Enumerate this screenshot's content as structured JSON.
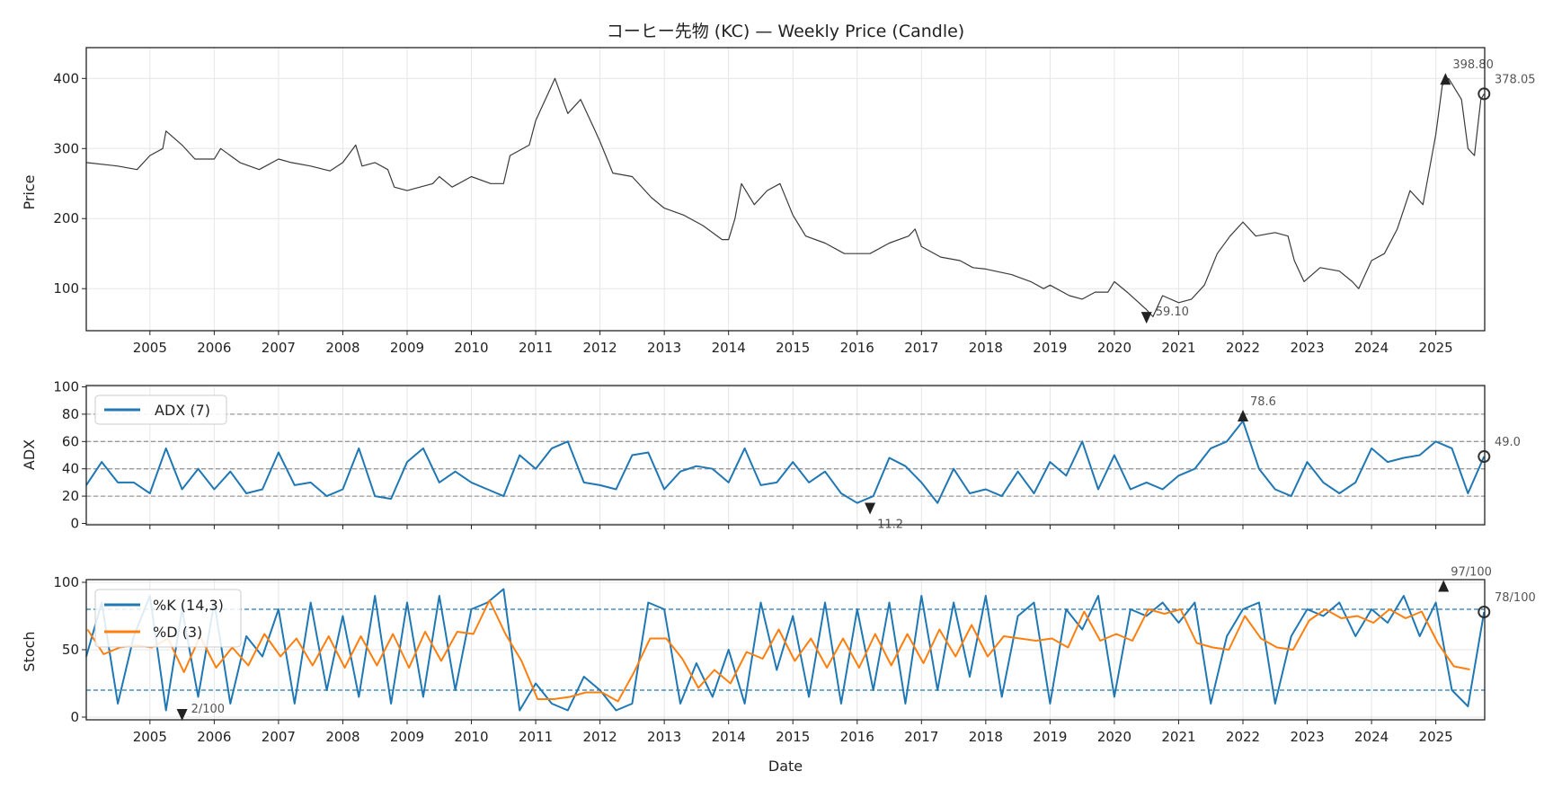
{
  "chart_data": [
    {
      "type": "line",
      "title": "コーヒー先物 (KC) — Weekly Price (Candle)",
      "ylabel": "Price",
      "xlim": [
        2004.01,
        2025.76
      ],
      "ylim": [
        40,
        444
      ],
      "yticks": [
        100,
        200,
        300,
        400
      ],
      "xticks": [
        2005,
        2006,
        2007,
        2008,
        2009,
        2010,
        2011,
        2012,
        2013,
        2014,
        2015,
        2016,
        2017,
        2018,
        2019,
        2020,
        2021,
        2022,
        2023,
        2024,
        2025
      ],
      "grid": true,
      "series_color": "#3a3a3a",
      "points": [
        [
          2004.0,
          280
        ],
        [
          2004.5,
          275
        ],
        [
          2004.8,
          270
        ],
        [
          2005.0,
          290
        ],
        [
          2005.2,
          300
        ],
        [
          2005.25,
          325
        ],
        [
          2005.5,
          305
        ],
        [
          2005.7,
          285
        ],
        [
          2006.0,
          285
        ],
        [
          2006.1,
          300
        ],
        [
          2006.4,
          280
        ],
        [
          2006.7,
          270
        ],
        [
          2007.0,
          285
        ],
        [
          2007.2,
          280
        ],
        [
          2007.5,
          275
        ],
        [
          2007.8,
          268
        ],
        [
          2008.0,
          280
        ],
        [
          2008.2,
          305
        ],
        [
          2008.3,
          275
        ],
        [
          2008.5,
          280
        ],
        [
          2008.7,
          270
        ],
        [
          2008.8,
          245
        ],
        [
          2009.0,
          240
        ],
        [
          2009.4,
          250
        ],
        [
          2009.5,
          260
        ],
        [
          2009.7,
          245
        ],
        [
          2010.0,
          260
        ],
        [
          2010.3,
          250
        ],
        [
          2010.5,
          250
        ],
        [
          2010.6,
          290
        ],
        [
          2010.9,
          305
        ],
        [
          2011.0,
          340
        ],
        [
          2011.2,
          380
        ],
        [
          2011.3,
          400
        ],
        [
          2011.5,
          350
        ],
        [
          2011.7,
          370
        ],
        [
          2011.9,
          330
        ],
        [
          2012.0,
          310
        ],
        [
          2012.2,
          265
        ],
        [
          2012.5,
          260
        ],
        [
          2012.8,
          230
        ],
        [
          2013.0,
          215
        ],
        [
          2013.3,
          205
        ],
        [
          2013.6,
          190
        ],
        [
          2013.9,
          170
        ],
        [
          2014.0,
          170
        ],
        [
          2014.1,
          200
        ],
        [
          2014.2,
          250
        ],
        [
          2014.4,
          220
        ],
        [
          2014.6,
          240
        ],
        [
          2014.8,
          250
        ],
        [
          2015.0,
          205
        ],
        [
          2015.2,
          175
        ],
        [
          2015.5,
          165
        ],
        [
          2015.8,
          150
        ],
        [
          2016.0,
          150
        ],
        [
          2016.2,
          150
        ],
        [
          2016.5,
          165
        ],
        [
          2016.8,
          175
        ],
        [
          2016.9,
          185
        ],
        [
          2017.0,
          160
        ],
        [
          2017.3,
          145
        ],
        [
          2017.6,
          140
        ],
        [
          2017.8,
          130
        ],
        [
          2018.0,
          128
        ],
        [
          2018.4,
          120
        ],
        [
          2018.7,
          110
        ],
        [
          2018.9,
          100
        ],
        [
          2019.0,
          105
        ],
        [
          2019.3,
          90
        ],
        [
          2019.5,
          85
        ],
        [
          2019.7,
          95
        ],
        [
          2019.9,
          95
        ],
        [
          2020.0,
          110
        ],
        [
          2020.2,
          95
        ],
        [
          2020.5,
          70
        ],
        [
          2020.6,
          60
        ],
        [
          2020.75,
          90
        ],
        [
          2021.0,
          80
        ],
        [
          2021.2,
          85
        ],
        [
          2021.4,
          105
        ],
        [
          2021.6,
          150
        ],
        [
          2021.8,
          175
        ],
        [
          2022.0,
          195
        ],
        [
          2022.2,
          175
        ],
        [
          2022.5,
          180
        ],
        [
          2022.7,
          175
        ],
        [
          2022.8,
          140
        ],
        [
          2022.95,
          110
        ],
        [
          2023.2,
          130
        ],
        [
          2023.5,
          125
        ],
        [
          2023.7,
          110
        ],
        [
          2023.8,
          100
        ],
        [
          2024.0,
          140
        ],
        [
          2024.2,
          150
        ],
        [
          2024.4,
          185
        ],
        [
          2024.6,
          240
        ],
        [
          2024.8,
          220
        ],
        [
          2025.0,
          320
        ],
        [
          2025.1,
          390
        ],
        [
          2025.2,
          400
        ],
        [
          2025.4,
          370
        ],
        [
          2025.5,
          300
        ],
        [
          2025.6,
          290
        ],
        [
          2025.7,
          370
        ],
        [
          2025.75,
          378
        ]
      ],
      "annotations": {
        "max": {
          "x": 2025.15,
          "y": 398.8,
          "label": "398.80"
        },
        "min": {
          "x": 2020.5,
          "y": 59.1,
          "label": "59.10"
        },
        "last": {
          "x": 2025.75,
          "y": 378.05,
          "label": "378.05"
        }
      }
    },
    {
      "type": "line",
      "ylabel": "ADX",
      "ylim": [
        -1,
        101
      ],
      "yticks": [
        0,
        20,
        40,
        60,
        80,
        100
      ],
      "hlines": [
        20,
        40,
        60,
        80
      ],
      "legend": "upper-left",
      "series": [
        {
          "name": "ADX (7)",
          "color": "#1f77b4",
          "x_start": 2004.0,
          "x_step": 0.25,
          "values": [
            28,
            45,
            30,
            30,
            22,
            55,
            25,
            40,
            25,
            38,
            22,
            25,
            52,
            28,
            30,
            20,
            25,
            55,
            20,
            18,
            45,
            55,
            30,
            38,
            30,
            25,
            20,
            50,
            40,
            55,
            60,
            30,
            28,
            25,
            50,
            52,
            25,
            38,
            42,
            40,
            30,
            55,
            28,
            30,
            45,
            30,
            38,
            22,
            15,
            20,
            48,
            42,
            30,
            15,
            40,
            22,
            25,
            20,
            38,
            22,
            45,
            35,
            60,
            25,
            50,
            25,
            30,
            25,
            35,
            40,
            55,
            60,
            75,
            40,
            25,
            20,
            45,
            30,
            22,
            30,
            55,
            45,
            48,
            50,
            60,
            55,
            22,
            49
          ]
        }
      ],
      "annotations": {
        "max": {
          "x": 2022.0,
          "y": 78.6,
          "label": "78.6"
        },
        "min": {
          "x": 2016.2,
          "y": 11.2,
          "label": "11.2"
        },
        "last": {
          "x": 2025.75,
          "y": 49.0,
          "label": "49.0"
        }
      }
    },
    {
      "type": "line",
      "ylabel": "Stoch",
      "xlabel": "Date",
      "ylim": [
        -2,
        102
      ],
      "yticks": [
        0,
        50,
        100
      ],
      "hlines": [
        20,
        80
      ],
      "legend": "upper-left",
      "series": [
        {
          "name": "%K (14,3)",
          "color": "#1f77b4",
          "x_start": 2004.0,
          "x_step": 0.25,
          "values": [
            45,
            85,
            10,
            60,
            90,
            5,
            80,
            15,
            85,
            10,
            60,
            45,
            80,
            10,
            85,
            20,
            75,
            15,
            90,
            10,
            85,
            15,
            90,
            20,
            80,
            85,
            95,
            5,
            25,
            10,
            5,
            30,
            20,
            5,
            10,
            85,
            80,
            10,
            40,
            15,
            50,
            10,
            85,
            35,
            75,
            15,
            85,
            10,
            80,
            20,
            85,
            10,
            90,
            20,
            85,
            30,
            90,
            15,
            75,
            85,
            10,
            80,
            65,
            90,
            15,
            80,
            75,
            85,
            70,
            85,
            10,
            60,
            80,
            85,
            10,
            60,
            80,
            75,
            85,
            60,
            80,
            70,
            90,
            60,
            85,
            20,
            8,
            78
          ]
        },
        {
          "name": "%D (3)",
          "color": "#ff7f0e"
        }
      ],
      "annotations": {
        "min": {
          "x": 2005.5,
          "y": 2,
          "label": "2/100"
        },
        "max": {
          "x": 2025.12,
          "y": 97,
          "label": "97/100"
        },
        "last": {
          "x": 2025.75,
          "y": 78,
          "label": "78/100"
        }
      }
    }
  ]
}
